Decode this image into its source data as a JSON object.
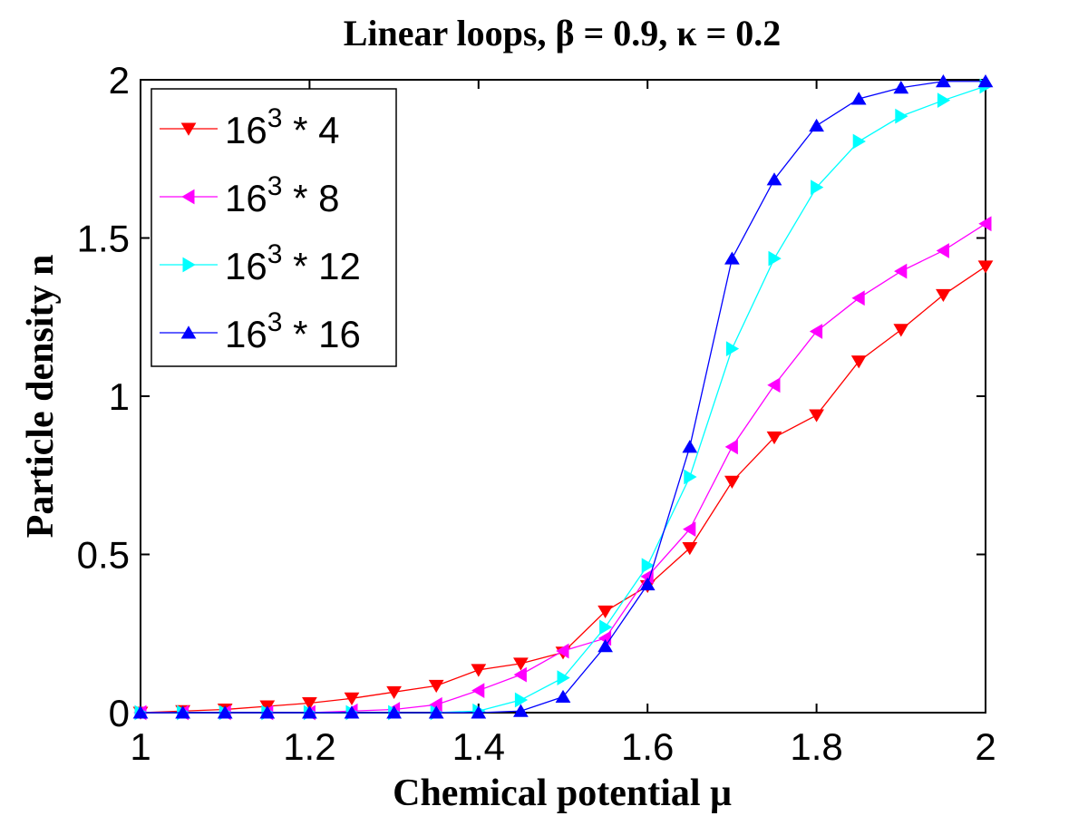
{
  "chart_data": {
    "type": "line",
    "title": "Linear loops,  β = 0.9,  κ = 0.2",
    "xlabel": "Chemical potential μ",
    "ylabel": "Particle density n",
    "xlim": [
      1,
      2
    ],
    "ylim": [
      0,
      2
    ],
    "x_ticks": [
      1,
      1.2,
      1.4,
      1.6,
      1.8,
      2
    ],
    "x_tick_labels": [
      "1",
      "1.2",
      "1.4",
      "1.6",
      "1.8",
      "2"
    ],
    "y_ticks": [
      0,
      0.5,
      1,
      1.5,
      2
    ],
    "y_tick_labels": [
      "0",
      "0.5",
      "1",
      "1.5",
      "2"
    ],
    "grid": false,
    "legend_position": "top-left",
    "x": [
      1.0,
      1.05,
      1.1,
      1.15,
      1.2,
      1.25,
      1.3,
      1.35,
      1.4,
      1.45,
      1.5,
      1.55,
      1.6,
      1.65,
      1.7,
      1.75,
      1.8,
      1.85,
      1.9,
      1.95,
      2.0
    ],
    "series": [
      {
        "name": "16³ * 4",
        "legend_base": "16",
        "legend_exp": "3",
        "legend_rest": " * 4",
        "color": "#ff0000",
        "marker": "triangle-down",
        "values": [
          0.0,
          0.005,
          0.01,
          0.02,
          0.03,
          0.045,
          0.065,
          0.085,
          0.135,
          0.155,
          0.19,
          0.32,
          0.4,
          0.52,
          0.73,
          0.87,
          0.94,
          1.11,
          1.21,
          1.32,
          1.41
        ]
      },
      {
        "name": "16³ * 8",
        "legend_base": "16",
        "legend_exp": "3",
        "legend_rest": " * 8",
        "color": "#ff00ff",
        "marker": "triangle-left",
        "values": [
          0.0,
          0.0,
          0.0,
          0.0,
          0.0,
          0.005,
          0.01,
          0.025,
          0.07,
          0.12,
          0.195,
          0.235,
          0.43,
          0.58,
          0.84,
          1.035,
          1.205,
          1.31,
          1.395,
          1.46,
          1.545
        ]
      },
      {
        "name": "16³ * 12",
        "legend_base": "16",
        "legend_exp": "3",
        "legend_rest": " * 12",
        "color": "#00ffff",
        "marker": "triangle-right",
        "values": [
          0.0,
          0.0,
          0.0,
          0.0,
          0.0,
          0.0,
          0.0,
          0.0,
          0.005,
          0.04,
          0.11,
          0.27,
          0.465,
          0.745,
          1.15,
          1.435,
          1.66,
          1.805,
          1.885,
          1.935,
          1.98
        ]
      },
      {
        "name": "16³ * 16",
        "legend_base": "16",
        "legend_exp": "3",
        "legend_rest": " * 16",
        "color": "#0000ff",
        "marker": "triangle-up",
        "values": [
          0.0,
          0.0,
          0.0,
          0.0,
          0.0,
          0.0,
          0.0,
          0.0,
          0.0,
          0.005,
          0.05,
          0.21,
          0.405,
          0.84,
          1.435,
          1.685,
          1.855,
          1.94,
          1.975,
          1.995,
          1.995
        ]
      }
    ]
  }
}
